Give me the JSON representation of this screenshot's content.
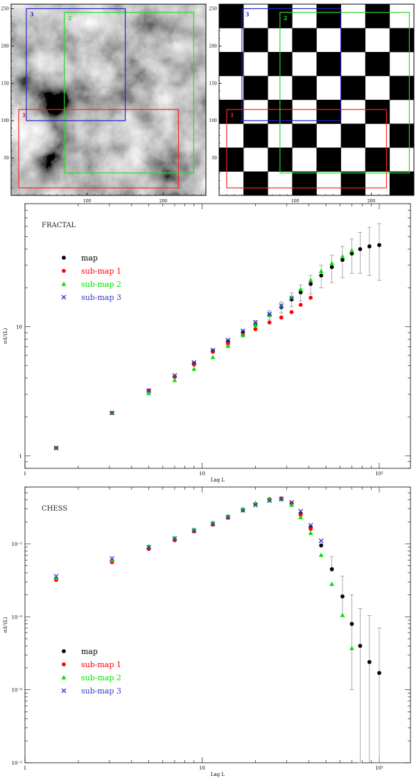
{
  "colors": {
    "map": "#000000",
    "sub1": "#ff0000",
    "sub2": "#00e000",
    "sub3": "#3333cc",
    "box1": "#ff2020",
    "box2": "#22dd22",
    "box3": "#2222cc"
  },
  "images": [
    {
      "kind": "fractal",
      "x_ticks": [
        {
          "v": 100,
          "label": "100"
        },
        {
          "v": 200,
          "label": "200"
        }
      ],
      "y_ticks": [
        {
          "v": 50,
          "label": "50"
        },
        {
          "v": 100,
          "label": "100"
        },
        {
          "v": 150,
          "label": "150"
        },
        {
          "v": 200,
          "label": "200"
        },
        {
          "v": 250,
          "label": "250"
        }
      ],
      "xlim": [
        0,
        256
      ],
      "ylim": [
        0,
        256
      ],
      "boxes": [
        {
          "label": "1",
          "color": "box1",
          "x0": 10,
          "y0": 10,
          "x1": 220,
          "y1": 115
        },
        {
          "label": "2",
          "color": "box2",
          "x0": 70,
          "y0": 30,
          "x1": 240,
          "y1": 245
        },
        {
          "label": "3",
          "color": "box3",
          "x0": 20,
          "y0": 100,
          "x1": 150,
          "y1": 250
        }
      ]
    },
    {
      "kind": "chess",
      "x_ticks": [
        {
          "v": 100,
          "label": "100"
        },
        {
          "v": 200,
          "label": "200"
        }
      ],
      "y_ticks": [
        {
          "v": 50,
          "label": "50"
        },
        {
          "v": 100,
          "label": "100"
        },
        {
          "v": 150,
          "label": "150"
        },
        {
          "v": 200,
          "label": "200"
        },
        {
          "v": 250,
          "label": "250"
        }
      ],
      "xlim": [
        0,
        256
      ],
      "ylim": [
        0,
        256
      ],
      "squares": 8,
      "boxes": [
        {
          "label": "1",
          "color": "box1",
          "x0": 10,
          "y0": 10,
          "x1": 220,
          "y1": 115
        },
        {
          "label": "2",
          "color": "box2",
          "x0": 80,
          "y0": 30,
          "x1": 250,
          "y1": 245
        },
        {
          "label": "3",
          "color": "box3",
          "x0": 30,
          "y0": 100,
          "x1": 160,
          "y1": 250
        }
      ]
    }
  ],
  "chart_data": [
    {
      "type": "scatter",
      "title": "FRACTAL",
      "xlabel": "Lag L",
      "ylabel": "σΔ²(L)",
      "xscale": "log",
      "yscale": "log",
      "xlim": [
        1,
        150
      ],
      "ylim": [
        0.8,
        90
      ],
      "x_ticks": [
        {
          "v": 1,
          "label": "1"
        },
        {
          "v": 10,
          "label": "10"
        },
        {
          "v": 100,
          "label": "10²"
        }
      ],
      "y_ticks": [
        {
          "v": 1,
          "label": "1"
        },
        {
          "v": 10,
          "label": "10"
        }
      ],
      "legend_position": "upper-left",
      "series": [
        {
          "name": "map",
          "color": "map",
          "marker": "circle",
          "x": [
            1.5,
            3.1,
            5,
            7,
            9,
            11.5,
            14,
            17,
            20,
            24,
            28,
            32,
            36,
            41,
            47,
            54,
            62,
            70,
            78,
            88,
            100
          ],
          "y": [
            1.15,
            2.15,
            3.2,
            4.1,
            5.2,
            6.5,
            7.7,
            9.1,
            10.5,
            12.3,
            14.2,
            16.3,
            18.5,
            21.5,
            25,
            29,
            33,
            37,
            40,
            42,
            43
          ],
          "err": [
            0.02,
            0.04,
            0.06,
            0.08,
            0.1,
            0.12,
            0.2,
            0.4,
            0.7,
            1.0,
            1.4,
            2,
            2.6,
            3.5,
            5,
            7,
            9,
            11,
            14,
            17,
            20
          ]
        },
        {
          "name": "sub-map 1",
          "color": "sub1",
          "marker": "circle",
          "x": [
            1.5,
            3.1,
            5,
            7,
            9,
            11.5,
            14,
            17,
            20,
            24,
            28,
            32,
            36,
            41
          ],
          "y": [
            1.15,
            2.15,
            3.2,
            4.1,
            5.1,
            6.4,
            7.4,
            8.6,
            9.6,
            10.8,
            11.8,
            13,
            14.8,
            16.8
          ],
          "err": []
        },
        {
          "name": "sub-map 2",
          "color": "sub2",
          "marker": "triangle",
          "x": [
            1.5,
            3.1,
            5,
            7,
            9,
            11.5,
            14,
            17,
            20,
            24,
            28,
            32,
            36,
            41,
            47,
            54,
            62,
            70
          ],
          "y": [
            1.15,
            2.15,
            3.05,
            3.85,
            4.7,
            5.8,
            7.1,
            8.6,
            10.3,
            12.3,
            14.5,
            17,
            19.5,
            23,
            27,
            31,
            35,
            39
          ],
          "err": []
        },
        {
          "name": "sub-map 3",
          "color": "sub3",
          "marker": "cross",
          "x": [
            1.5,
            3.1,
            5,
            7,
            9,
            11.5,
            14,
            17,
            20,
            24,
            28,
            32
          ],
          "y": [
            1.15,
            2.15,
            3.2,
            4.2,
            5.3,
            6.6,
            7.9,
            9.3,
            10.8,
            12.6,
            14.6,
            16.6
          ],
          "err": []
        }
      ]
    },
    {
      "type": "scatter",
      "title": "CHESS",
      "xlabel": "Lag L",
      "ylabel": "σΔ²(L)",
      "xscale": "log",
      "yscale": "log",
      "xlim": [
        1,
        150
      ],
      "ylim": [
        1e-05,
        0.06
      ],
      "x_ticks": [
        {
          "v": 1,
          "label": "1"
        },
        {
          "v": 10,
          "label": "10"
        },
        {
          "v": 100,
          "label": "10²"
        }
      ],
      "y_ticks": [
        {
          "v": 1e-05,
          "label": "10⁻⁵"
        },
        {
          "v": 0.0001,
          "label": "10⁻⁴"
        },
        {
          "v": 0.001,
          "label": "10⁻³"
        },
        {
          "v": 0.01,
          "label": "10⁻²"
        }
      ],
      "legend_position": "lower-left",
      "series": [
        {
          "name": "map",
          "color": "map",
          "marker": "circle",
          "x": [
            1.5,
            3.1,
            5,
            7,
            9,
            11.5,
            14,
            17,
            20,
            24,
            28,
            32,
            36,
            41,
            47,
            54,
            62,
            70,
            78,
            88,
            100
          ],
          "y": [
            0.0033,
            0.0058,
            0.0087,
            0.0115,
            0.015,
            0.0185,
            0.023,
            0.029,
            0.035,
            0.04,
            0.041,
            0.036,
            0.026,
            0.017,
            0.0095,
            0.0045,
            0.0019,
            0.0008,
            0.0004,
            0.00024,
            0.00017
          ],
          "err_lo": [
            0,
            0,
            0,
            0,
            0,
            0,
            0,
            0,
            0,
            0,
            0,
            0,
            0,
            0,
            0,
            0.0003,
            0.0009,
            0.0007,
            0.00039,
            0.00023,
            0.00016
          ],
          "err_hi": [
            0,
            0,
            0,
            0,
            0,
            0,
            0,
            0,
            0,
            0,
            0,
            0,
            0,
            0,
            0,
            0.0022,
            0.0017,
            0.0012,
            0.0009,
            0.0008,
            0.00053
          ]
        },
        {
          "name": "sub-map 1",
          "color": "sub1",
          "marker": "circle",
          "x": [
            1.5,
            3.1,
            5,
            7,
            9,
            11.5,
            14,
            17,
            20,
            24,
            28,
            32,
            36,
            41
          ],
          "y": [
            0.0032,
            0.0056,
            0.0085,
            0.0112,
            0.0148,
            0.0183,
            0.0228,
            0.0288,
            0.035,
            0.041,
            0.042,
            0.036,
            0.025,
            0.016
          ],
          "err_lo": [],
          "err_hi": []
        },
        {
          "name": "sub-map 2",
          "color": "sub2",
          "marker": "triangle",
          "x": [
            1.5,
            3.1,
            5,
            7,
            9,
            11.5,
            14,
            17,
            20,
            24,
            28,
            32,
            36,
            41,
            47,
            54,
            62,
            70
          ],
          "y": [
            0.0034,
            0.006,
            0.0092,
            0.012,
            0.0157,
            0.0195,
            0.024,
            0.03,
            0.036,
            0.041,
            0.041,
            0.034,
            0.023,
            0.014,
            0.007,
            0.0028,
            0.00105,
            0.00037
          ],
          "err_lo": [],
          "err_hi": []
        },
        {
          "name": "sub-map 3",
          "color": "sub3",
          "marker": "cross",
          "x": [
            1.5,
            3.1,
            5,
            7,
            9,
            11.5,
            14,
            17,
            20,
            24,
            28,
            32,
            36,
            41,
            47
          ],
          "y": [
            0.0036,
            0.0063,
            0.009,
            0.0118,
            0.0152,
            0.0188,
            0.0232,
            0.0288,
            0.034,
            0.039,
            0.041,
            0.037,
            0.028,
            0.018,
            0.011
          ],
          "err_lo": [],
          "err_hi": []
        }
      ]
    }
  ]
}
